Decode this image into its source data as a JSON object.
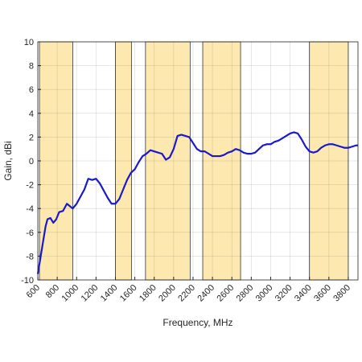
{
  "chart_data": {
    "type": "line",
    "xlabel": "Frequency, MHz",
    "ylabel": "Gain, dBi",
    "xlim": [
      600,
      3900
    ],
    "ylim": [
      -10,
      10
    ],
    "xticks": [
      600,
      800,
      1000,
      1200,
      1400,
      1600,
      1800,
      2000,
      2200,
      2400,
      2600,
      2800,
      3000,
      3200,
      3400,
      3600,
      3800
    ],
    "yticks": [
      -10,
      -8,
      -6,
      -4,
      -2,
      0,
      2,
      4,
      6,
      8,
      10
    ],
    "grid": true,
    "band_color": "#fde9b0",
    "bands": [
      [
        617,
        960
      ],
      [
        1400,
        1565
      ],
      [
        1710,
        2170
      ],
      [
        2300,
        2690
      ],
      [
        3400,
        3800
      ]
    ],
    "x": [
      600,
      620,
      650,
      680,
      700,
      730,
      760,
      790,
      820,
      860,
      900,
      930,
      960,
      1000,
      1040,
      1080,
      1120,
      1160,
      1200,
      1240,
      1280,
      1320,
      1360,
      1400,
      1440,
      1480,
      1520,
      1560,
      1600,
      1640,
      1680,
      1720,
      1760,
      1800,
      1840,
      1880,
      1920,
      1960,
      2000,
      2040,
      2080,
      2120,
      2160,
      2200,
      2240,
      2280,
      2320,
      2360,
      2400,
      2440,
      2480,
      2520,
      2560,
      2600,
      2640,
      2680,
      2720,
      2760,
      2800,
      2840,
      2880,
      2920,
      2960,
      3000,
      3040,
      3080,
      3120,
      3160,
      3200,
      3240,
      3280,
      3320,
      3360,
      3400,
      3440,
      3480,
      3520,
      3560,
      3600,
      3640,
      3680,
      3720,
      3760,
      3800,
      3840,
      3880,
      3900
    ],
    "series": [
      {
        "color": "#1a1acc",
        "values": [
          -9.5,
          -8.5,
          -7,
          -5.5,
          -4.9,
          -4.8,
          -5.2,
          -4.9,
          -4.3,
          -4.2,
          -3.6,
          -3.8,
          -4.0,
          -3.6,
          -3.0,
          -2.4,
          -1.5,
          -1.6,
          -1.5,
          -1.9,
          -2.5,
          -3.1,
          -3.6,
          -3.6,
          -3.2,
          -2.4,
          -1.6,
          -1.0,
          -0.7,
          -0.1,
          0.4,
          0.6,
          0.9,
          0.8,
          0.7,
          0.6,
          0.1,
          0.3,
          1.0,
          2.1,
          2.2,
          2.1,
          2.0,
          1.5,
          1.0,
          0.8,
          0.8,
          0.6,
          0.4,
          0.4,
          0.4,
          0.5,
          0.7,
          0.8,
          1.0,
          0.9,
          0.7,
          0.6,
          0.6,
          0.7,
          1.0,
          1.3,
          1.4,
          1.4,
          1.6,
          1.7,
          1.9,
          2.1,
          2.3,
          2.4,
          2.3,
          1.8,
          1.2,
          0.8,
          0.7,
          0.8,
          1.1,
          1.3,
          1.4,
          1.4,
          1.3,
          1.2,
          1.1,
          1.1,
          1.2,
          1.3,
          1.3
        ]
      }
    ]
  }
}
